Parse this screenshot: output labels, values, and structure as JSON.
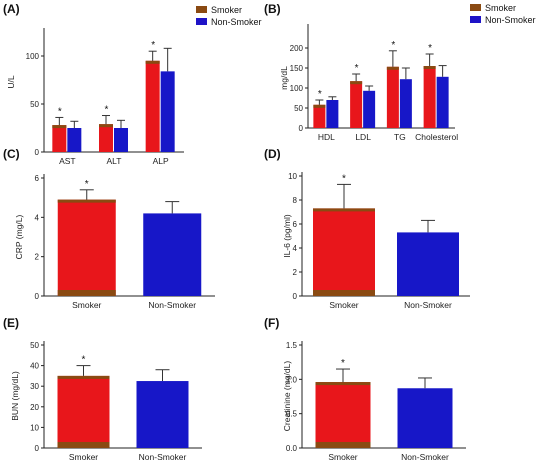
{
  "colors": {
    "smoker": "#e8161b",
    "smoker_shadow": "#8a4a12",
    "non_smoker": "#1717c8",
    "legend_smoker": "#8a4a12",
    "legend_non_smoker": "#1e13c7",
    "axis": "#222222"
  },
  "chart_data": [
    {
      "id": "A",
      "label": "(A)",
      "type": "bar",
      "ylabel": "U/L",
      "ylim": [
        0,
        125
      ],
      "yticks": [
        0,
        50,
        100
      ],
      "categories": [
        "AST",
        "ALT",
        "ALP"
      ],
      "series": [
        {
          "name": "Smoker",
          "values": [
            28,
            29,
            95
          ],
          "errors": [
            8,
            9,
            10
          ]
        },
        {
          "name": "Non-Smoker",
          "values": [
            25,
            25,
            84
          ],
          "errors": [
            7,
            8,
            24
          ]
        }
      ],
      "significance": [
        "*",
        "*",
        "*"
      ],
      "legend": "top-right"
    },
    {
      "id": "B",
      "label": "(B)",
      "type": "bar",
      "ylabel": "mg/dL",
      "ylim": [
        0,
        250
      ],
      "yticks": [
        0,
        50,
        100,
        150,
        200
      ],
      "categories": [
        "HDL",
        "LDL",
        "TG",
        "Cholesterol"
      ],
      "series": [
        {
          "name": "Smoker",
          "values": [
            58,
            117,
            153,
            155
          ],
          "errors": [
            12,
            18,
            40,
            30
          ]
        },
        {
          "name": "Non-Smoker",
          "values": [
            70,
            93,
            122,
            128
          ],
          "errors": [
            8,
            12,
            28,
            28
          ]
        }
      ],
      "significance": [
        "*",
        "*",
        "*",
        "*"
      ],
      "legend": "top-right"
    },
    {
      "id": "C",
      "label": "(C)",
      "type": "bar",
      "ylabel": "CRP (mg/L)",
      "ylim": [
        0,
        6
      ],
      "yticks": [
        0,
        2,
        4,
        6
      ],
      "categories": [
        "Smoker",
        "Non-Smoker"
      ],
      "values": [
        4.9,
        4.2
      ],
      "errors": [
        0.5,
        0.6
      ],
      "significance": [
        "*",
        ""
      ]
    },
    {
      "id": "D",
      "label": "(D)",
      "type": "bar",
      "ylabel": "IL-6 (pg/ml)",
      "ylim": [
        0,
        10
      ],
      "yticks": [
        0,
        2,
        4,
        6,
        8,
        10
      ],
      "categories": [
        "Smoker",
        "Non-Smoker"
      ],
      "values": [
        7.3,
        5.3
      ],
      "errors": [
        2.0,
        1.0
      ],
      "significance": [
        "*",
        ""
      ]
    },
    {
      "id": "E",
      "label": "(E)",
      "type": "bar",
      "ylabel": "BUN (mg/dL)",
      "ylim": [
        0,
        50
      ],
      "yticks": [
        0,
        10,
        20,
        30,
        40,
        50
      ],
      "categories": [
        "Smoker",
        "Non-Smoker"
      ],
      "values": [
        35,
        32.5
      ],
      "errors": [
        5,
        5.5
      ],
      "significance": [
        "*",
        ""
      ]
    },
    {
      "id": "F",
      "label": "(F)",
      "type": "bar",
      "ylabel": "Creatinine (mg/dL)",
      "ylim": [
        0,
        1.5
      ],
      "yticks": [
        0.0,
        0.5,
        1.0,
        1.5
      ],
      "categories": [
        "Smoker",
        "Non-Smoker"
      ],
      "values": [
        0.96,
        0.87
      ],
      "errors": [
        0.19,
        0.15
      ],
      "significance": [
        "*",
        ""
      ]
    }
  ]
}
